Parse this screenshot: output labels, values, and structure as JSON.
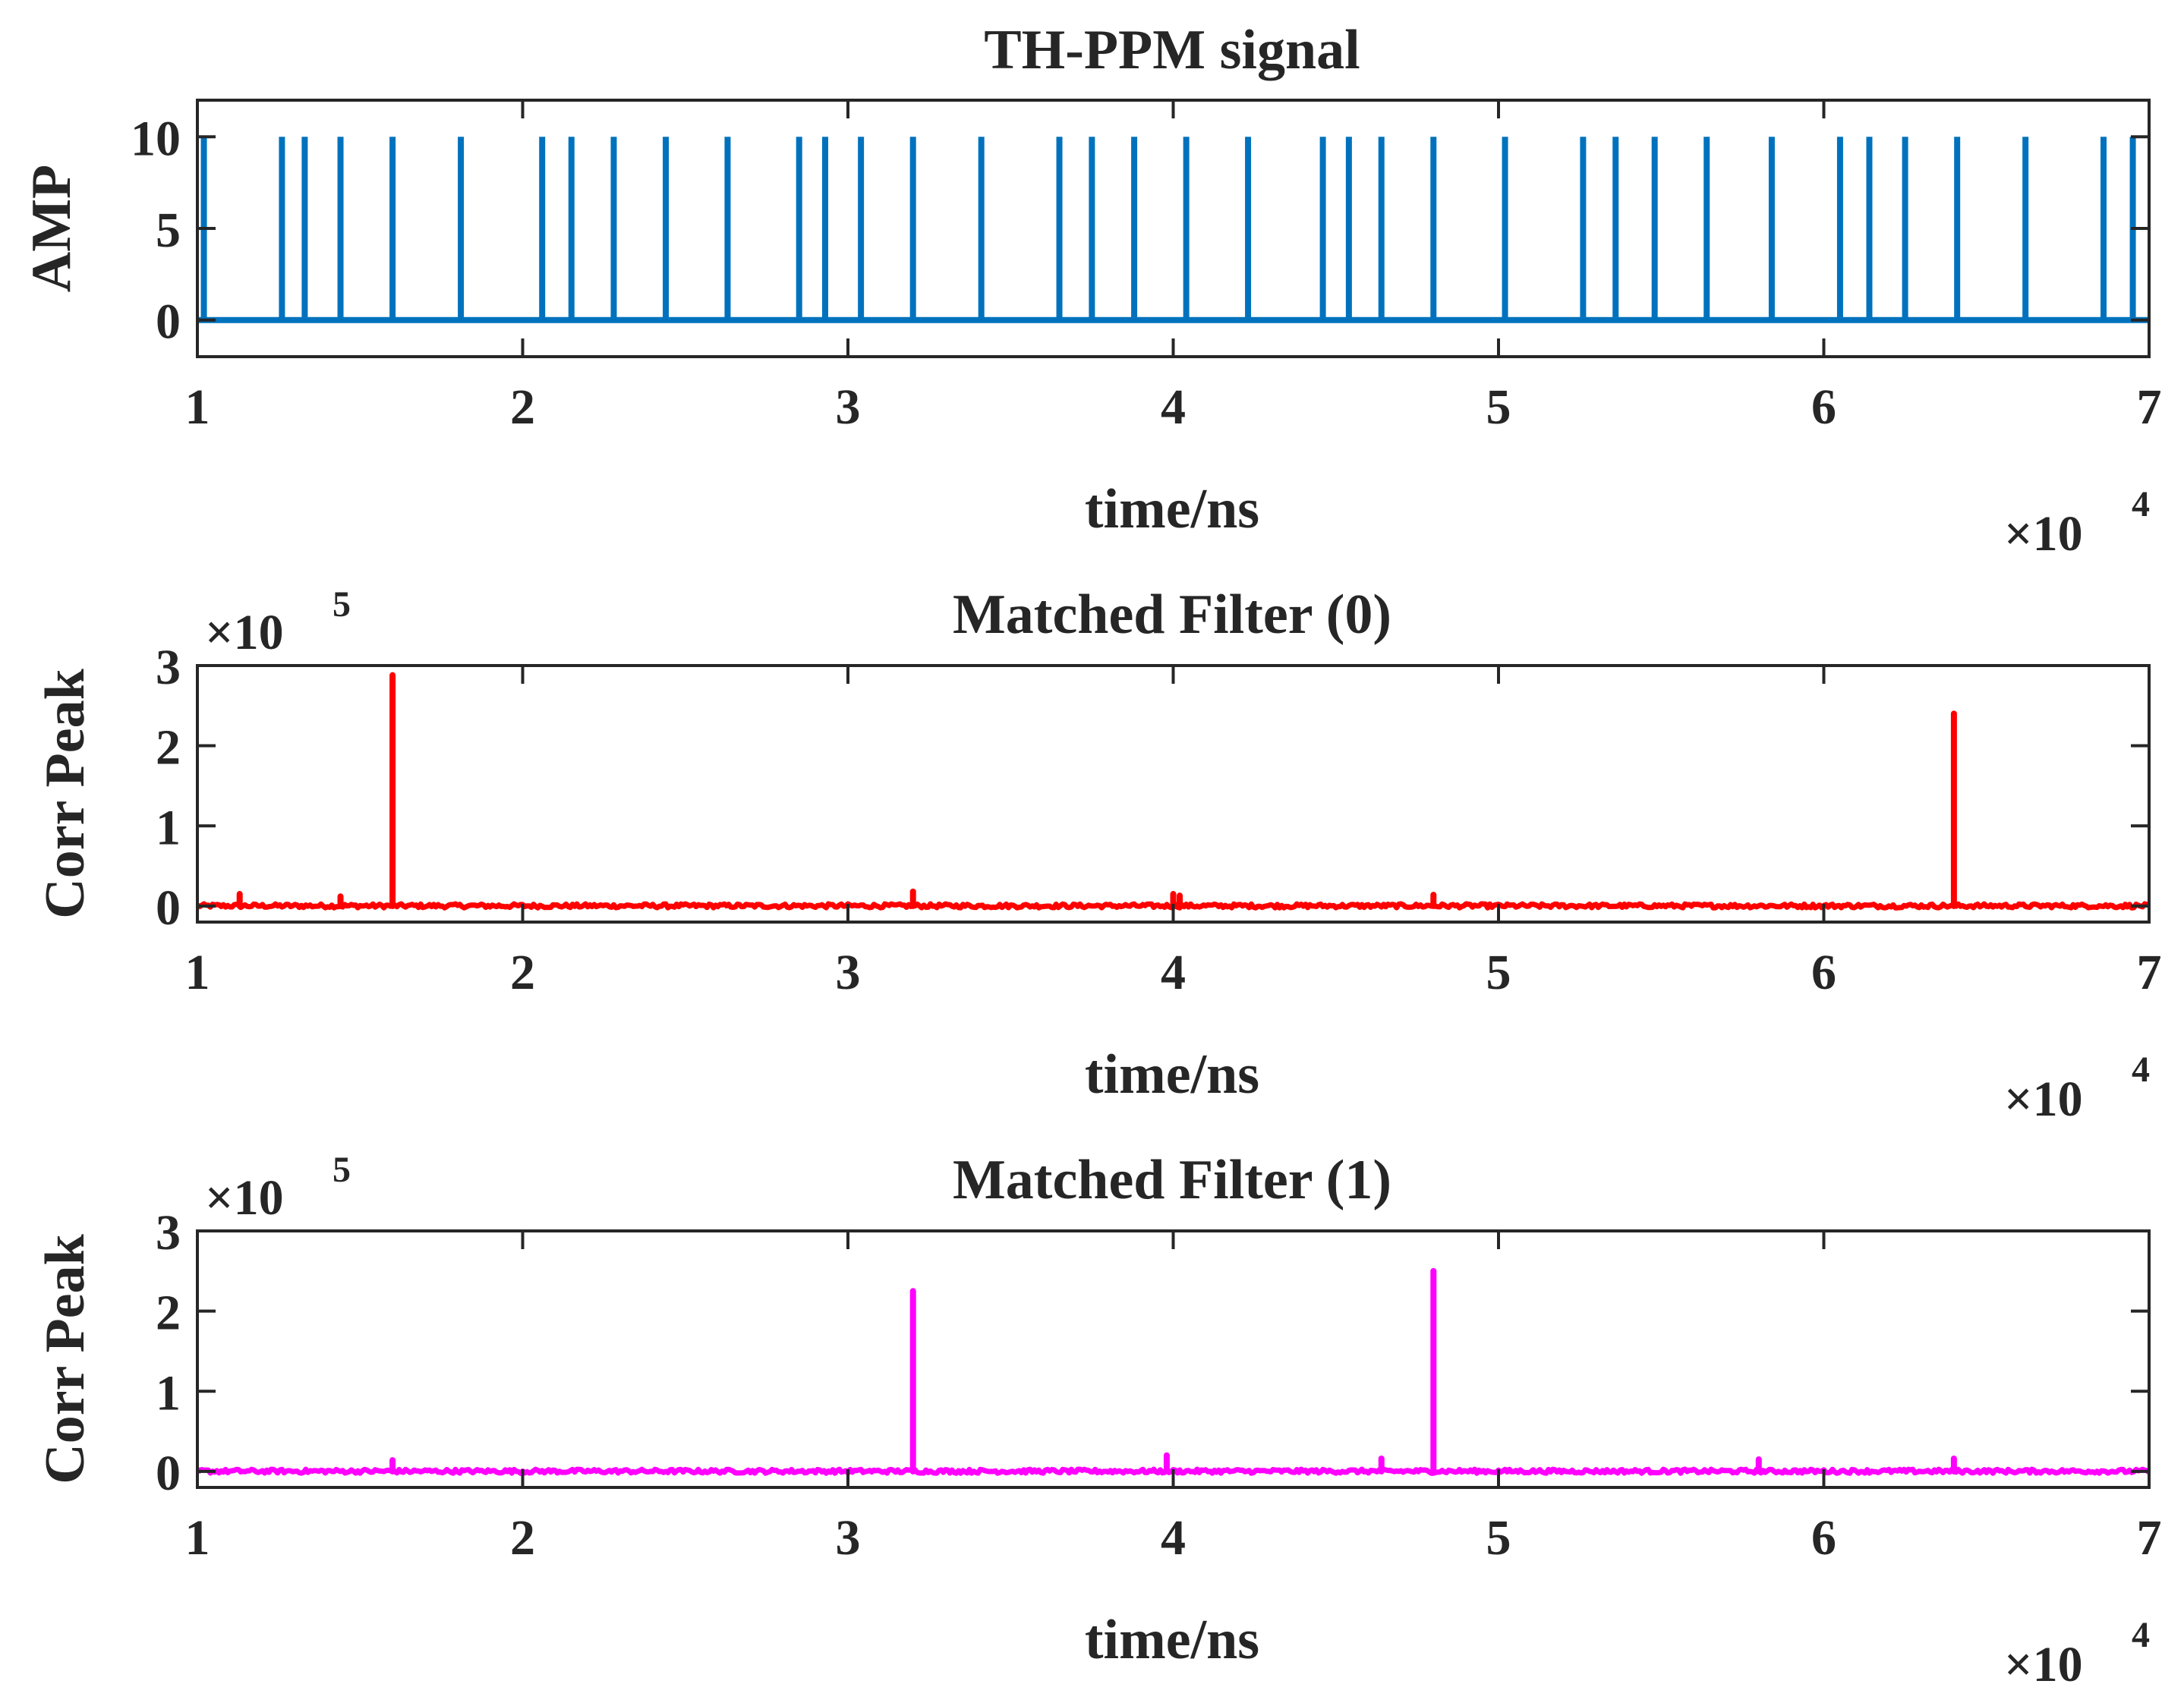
{
  "chart_data": [
    {
      "type": "line",
      "title": "TH-PPM signal",
      "xlabel": "time/ns",
      "ylabel": "AMP",
      "xlim": [
        1,
        7
      ],
      "ylim": [
        -2,
        12
      ],
      "x_ticks": [
        1,
        2,
        3,
        4,
        5,
        6,
        7
      ],
      "x_tick_labels": [
        "1",
        "2",
        "3",
        "4",
        "5",
        "6",
        "7"
      ],
      "x_exponent_label": "×10",
      "x_exponent_power": "4",
      "y_ticks": [
        0,
        5,
        10
      ],
      "y_tick_labels": [
        "0",
        "5",
        "10"
      ],
      "color": "#0072BD",
      "series": [
        {
          "name": "TH-PPM signal",
          "baseline": 0,
          "pulse_amplitude": 10,
          "pulse_positions_x1e4": [
            1.02,
            1.26,
            1.33,
            1.44,
            1.6,
            1.81,
            2.06,
            2.15,
            2.28,
            2.44,
            2.63,
            2.85,
            2.93,
            3.04,
            3.2,
            3.41,
            3.65,
            3.75,
            3.88,
            4.04,
            4.23,
            4.46,
            4.54,
            4.64,
            4.8,
            5.02,
            5.26,
            5.36,
            5.48,
            5.64,
            5.84,
            6.05,
            6.14,
            6.25,
            6.41,
            6.62,
            6.86,
            6.95
          ]
        }
      ]
    },
    {
      "type": "line",
      "title": "Matched Filter (0)",
      "xlabel": "time/ns",
      "ylabel": "Corr Peak",
      "xlim": [
        1,
        7
      ],
      "ylim": [
        -0.2,
        3
      ],
      "x_ticks": [
        1,
        2,
        3,
        4,
        5,
        6,
        7
      ],
      "x_tick_labels": [
        "1",
        "2",
        "3",
        "4",
        "5",
        "6",
        "7"
      ],
      "x_exponent_label": "×10",
      "x_exponent_power": "4",
      "y_ticks": [
        0,
        1,
        2,
        3
      ],
      "y_tick_labels": [
        "0",
        "1",
        "2",
        "3"
      ],
      "y_exponent_label": "×10",
      "y_exponent_power": "5",
      "color": "#FF0000",
      "series": [
        {
          "name": "Matched Filter (0)",
          "noise_level": 0.05,
          "peaks": [
            {
              "x": 1.6,
              "y": 2.88
            },
            {
              "x": 6.4,
              "y": 2.4
            },
            {
              "x": 1.13,
              "y": 0.15
            },
            {
              "x": 1.44,
              "y": 0.12
            },
            {
              "x": 3.2,
              "y": 0.18
            },
            {
              "x": 4.0,
              "y": 0.15
            },
            {
              "x": 4.02,
              "y": 0.13
            },
            {
              "x": 4.8,
              "y": 0.14
            }
          ]
        }
      ]
    },
    {
      "type": "line",
      "title": "Matched Filter (1)",
      "xlabel": "time/ns",
      "ylabel": "Corr Peak",
      "xlim": [
        1,
        7
      ],
      "ylim": [
        -0.2,
        3
      ],
      "x_ticks": [
        1,
        2,
        3,
        4,
        5,
        6,
        7
      ],
      "x_tick_labels": [
        "1",
        "2",
        "3",
        "4",
        "5",
        "6",
        "7"
      ],
      "x_exponent_label": "×10",
      "x_exponent_power": "4",
      "y_ticks": [
        0,
        1,
        2,
        3
      ],
      "y_tick_labels": [
        "0",
        "1",
        "2",
        "3"
      ],
      "y_exponent_label": "×10",
      "y_exponent_power": "5",
      "color": "#FF00FF",
      "series": [
        {
          "name": "Matched Filter (1)",
          "noise_level": 0.05,
          "peaks": [
            {
              "x": 3.2,
              "y": 2.25
            },
            {
              "x": 4.8,
              "y": 2.5
            },
            {
              "x": 1.6,
              "y": 0.14
            },
            {
              "x": 3.98,
              "y": 0.2
            },
            {
              "x": 4.64,
              "y": 0.16
            },
            {
              "x": 5.8,
              "y": 0.15
            },
            {
              "x": 6.4,
              "y": 0.16
            }
          ]
        }
      ]
    }
  ]
}
